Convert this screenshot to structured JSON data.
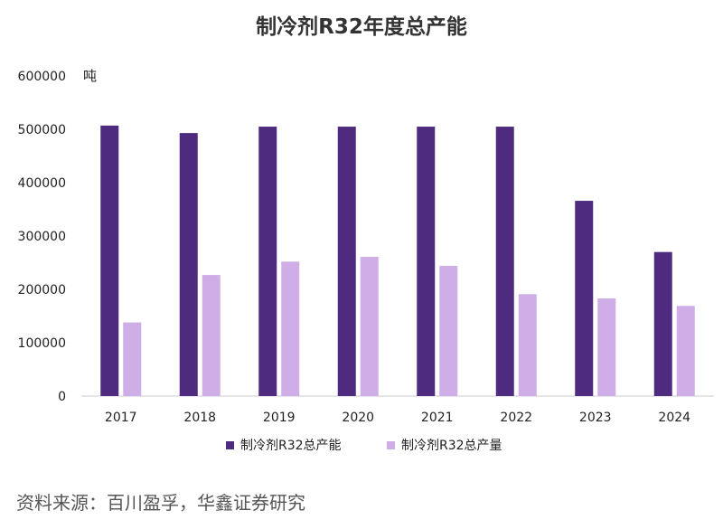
{
  "chart_data": {
    "type": "bar",
    "title": "制冷剂R32年度总产能",
    "ylabel": "吨",
    "categories": [
      "2017",
      "2018",
      "2019",
      "2020",
      "2021",
      "2022",
      "2023",
      "2024"
    ],
    "series": [
      {
        "name": "制冷剂R32总产能",
        "color": "#4e2b7f",
        "values": [
          507000,
          493000,
          505000,
          505000,
          505000,
          505000,
          366000,
          270000
        ]
      },
      {
        "name": "制冷剂R32总产量",
        "color": "#cfade6",
        "values": [
          138000,
          227000,
          252000,
          261000,
          244000,
          191000,
          183000,
          169000
        ]
      }
    ],
    "ylim": [
      0,
      600000
    ],
    "yticks": [
      "0",
      "100000",
      "200000",
      "300000",
      "400000",
      "500000",
      "600000"
    ],
    "grid": false,
    "legend": "bottom"
  },
  "source": "资料来源：百川盈孚，华鑫证券研究"
}
